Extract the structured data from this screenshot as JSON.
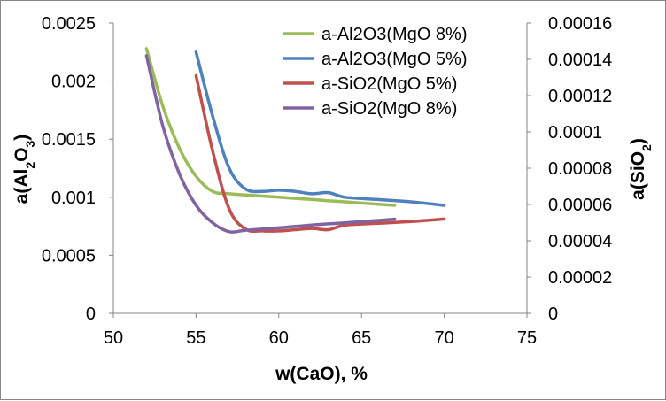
{
  "chart_data": {
    "type": "line",
    "xlabel": "w(CaO), %",
    "ylabel_left": "a(Al2O3)",
    "ylabel_right": "a(SiO2)",
    "xlim": [
      50,
      75
    ],
    "ylim_left": [
      0,
      0.0025
    ],
    "ylim_right": [
      0,
      0.00016
    ],
    "x_ticks": [
      "50",
      "55",
      "60",
      "65",
      "70",
      "75"
    ],
    "y_left_ticks": [
      "0",
      "0.0005",
      "0.001",
      "0.0015",
      "0.002",
      "0.0025"
    ],
    "y_right_ticks": [
      "0",
      "0.00002",
      "0.00004",
      "0.00006",
      "0.00008",
      "0.0001",
      "0.00012",
      "0.00014",
      "0.00016"
    ],
    "grid": false,
    "legend_position": "top-right",
    "series": [
      {
        "name": "a-Al2O3(MgO 8%)",
        "axis": "left",
        "color": "#9bbb59",
        "x": [
          52,
          53,
          54,
          55,
          56,
          57,
          58,
          60,
          62,
          64,
          66,
          67
        ],
        "y": [
          0.00228,
          0.00178,
          0.00142,
          0.00118,
          0.00105,
          0.00103,
          0.00102,
          0.001,
          0.00098,
          0.00096,
          0.00094,
          0.00093
        ]
      },
      {
        "name": "a-Al2O3(MgO 5%)",
        "axis": "left",
        "color": "#4f81bd",
        "x": [
          55,
          56,
          57,
          58,
          59,
          60,
          61,
          62,
          63,
          64,
          66,
          68,
          70
        ],
        "y": [
          0.00225,
          0.0017,
          0.00125,
          0.00107,
          0.00105,
          0.00106,
          0.00105,
          0.00103,
          0.00104,
          0.001,
          0.00098,
          0.00096,
          0.00093
        ]
      },
      {
        "name": "a-SiO2(MgO 5%)",
        "axis": "right",
        "color": "#c0504d",
        "x": [
          55,
          56,
          57,
          58,
          59,
          60,
          61,
          62,
          63,
          64,
          66,
          68,
          70
        ],
        "y": [
          0.000131,
          8.95e-05,
          5.75e-05,
          4.64e-05,
          4.54e-05,
          4.54e-05,
          4.61e-05,
          4.68e-05,
          4.61e-05,
          4.86e-05,
          4.96e-05,
          5.06e-05,
          5.2e-05
        ]
      },
      {
        "name": "a-SiO2(MgO 8%)",
        "axis": "right",
        "color": "#8064a2",
        "x": [
          52,
          53,
          54,
          55,
          56,
          57,
          58,
          60,
          62,
          64,
          66,
          67
        ],
        "y": [
          0.000142,
          0.000103,
          7.68e-05,
          5.95e-05,
          4.99e-05,
          4.5e-05,
          4.58e-05,
          4.71e-05,
          4.87e-05,
          4.99e-05,
          5.12e-05,
          5.19e-05
        ]
      }
    ]
  }
}
